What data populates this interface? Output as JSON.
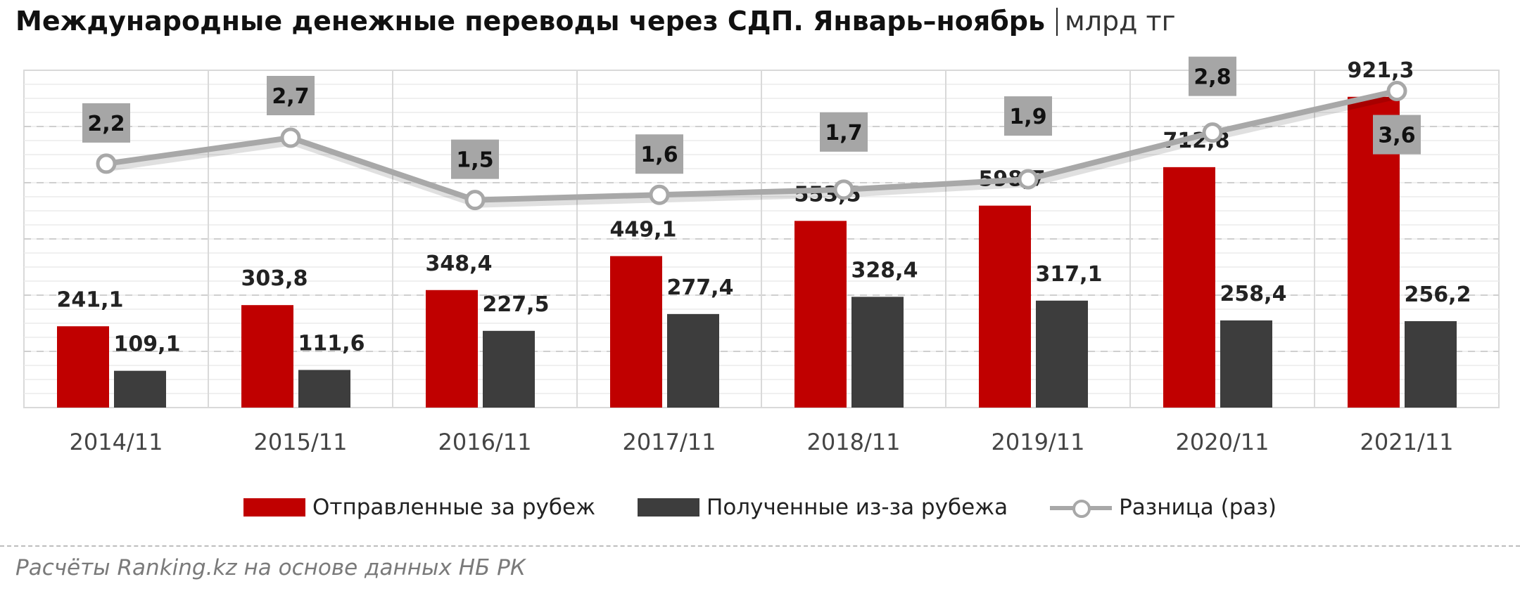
{
  "title": {
    "main": "Международные денежные переводы через СДП. Январь–ноябрь",
    "unit": "млрд тг"
  },
  "source": "Расчёты Ranking.kz на основе данных НБ РК",
  "colors": {
    "sent": "#c00000",
    "received": "#3d3d3d",
    "ratio": "#a8a8a8",
    "label_box": "#a6a6a6"
  },
  "legend": {
    "sent": "Отправленные за рубеж",
    "received": "Полученные из-за рубежа",
    "ratio": "Разница (раз)"
  },
  "chart_data": {
    "type": "bar",
    "categories": [
      "2014/11",
      "2015/11",
      "2016/11",
      "2017/11",
      "2018/11",
      "2019/11",
      "2020/11",
      "2021/11"
    ],
    "series": [
      {
        "name": "Отправленные за рубеж",
        "type": "bar",
        "values": [
          241.1,
          303.8,
          348.4,
          449.1,
          553.5,
          598.7,
          712.8,
          921.3
        ],
        "labels": [
          "241,1",
          "303,8",
          "348,4",
          "449,1",
          "553,5",
          "598,7",
          "712,8",
          "921,3"
        ]
      },
      {
        "name": "Полученные из-за рубежа",
        "type": "bar",
        "values": [
          109.1,
          111.6,
          227.5,
          277.4,
          328.4,
          317.1,
          258.4,
          256.2
        ],
        "labels": [
          "109,1",
          "111,6",
          "227,5",
          "277,4",
          "328,4",
          "317,1",
          "258,4",
          "256,2"
        ]
      },
      {
        "name": "Разница (раз)",
        "type": "line",
        "axis": "secondary",
        "values": [
          2.2,
          2.7,
          1.5,
          1.6,
          1.7,
          1.9,
          2.8,
          3.6
        ],
        "labels": [
          "2,2",
          "2,7",
          "1,5",
          "1,6",
          "1,7",
          "1,9",
          "2,8",
          "3,6"
        ]
      }
    ],
    "ylim": [
      0,
      1000
    ],
    "y2lim": [
      -2.5,
      4.0
    ],
    "grid": true,
    "legend_position": "bottom"
  }
}
